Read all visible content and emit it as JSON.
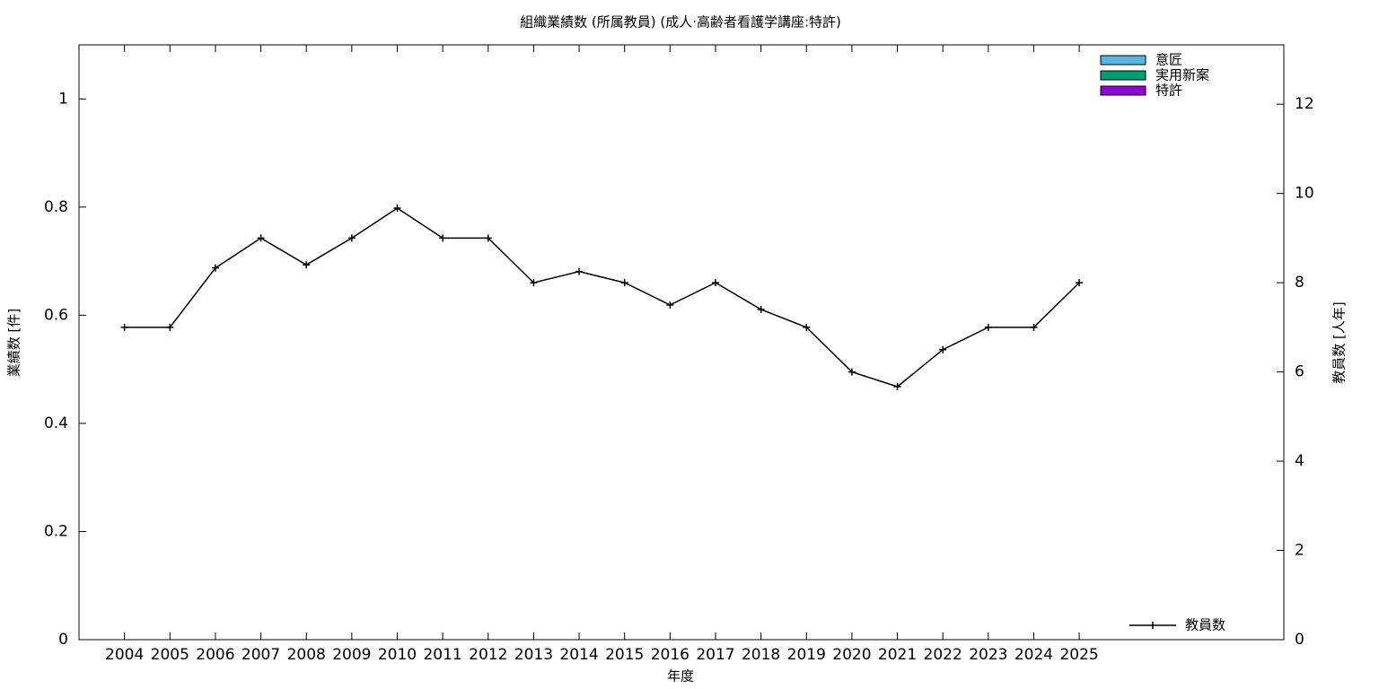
{
  "chart_data": {
    "type": "bar",
    "title": "組織業績数 (所属教員) (成人·高齢者看護学講座:特許)",
    "x_label": "年度",
    "y_label": "業績数 [件]",
    "y2_label": "教員数 [人年]",
    "categories": [
      "2004",
      "2005",
      "2006",
      "2007",
      "2008",
      "2009",
      "2010",
      "2011",
      "2012",
      "2013",
      "2014",
      "2015",
      "2016",
      "2017",
      "2018",
      "2019",
      "2020",
      "2021",
      "2022",
      "2023",
      "2024",
      "2025"
    ],
    "series": [
      {
        "name": "意匠",
        "type": "bar",
        "color": "#56b4e9",
        "values": [
          0,
          0,
          0,
          0,
          0,
          0,
          0,
          0,
          0,
          0,
          0,
          0,
          0,
          0,
          0,
          0,
          0,
          0,
          0,
          0,
          0,
          0
        ]
      },
      {
        "name": "実用新案",
        "type": "bar",
        "color": "#009e73",
        "values": [
          0,
          0,
          0,
          0,
          0,
          0,
          0,
          0,
          0,
          0,
          0,
          0,
          0,
          0,
          0,
          0,
          0,
          0,
          0,
          0,
          0,
          0
        ]
      },
      {
        "name": "特許",
        "type": "bar",
        "color": "#9400d3",
        "values": [
          0,
          0,
          0,
          0,
          0,
          0,
          0,
          0,
          0,
          0,
          0,
          0,
          0,
          0,
          0,
          0,
          0,
          0,
          0,
          0,
          0,
          0
        ]
      },
      {
        "name": "教員数",
        "type": "line",
        "axis": "y2",
        "color": "#000000",
        "values": [
          7,
          7,
          8.33,
          9,
          8.4,
          9,
          9.67,
          9,
          9,
          8,
          8.25,
          8,
          7.5,
          8,
          7.4,
          7,
          6,
          5.67,
          6.5,
          7,
          7,
          8
        ]
      }
    ],
    "ylim": [
      0,
      1.1
    ],
    "yticks": [
      0,
      0.2,
      0.4,
      0.6,
      0.8,
      1
    ],
    "y2lim": [
      0,
      13.33
    ],
    "y2ticks": [
      0,
      2,
      4,
      6,
      8,
      10,
      12
    ],
    "bar_legend": "top-right",
    "line_legend": "bottom-right"
  }
}
